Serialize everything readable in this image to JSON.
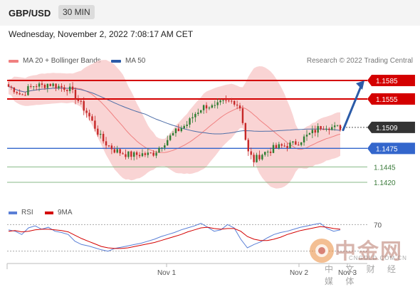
{
  "header": {
    "pair": "GBP/USD",
    "timeframe": "30 MIN"
  },
  "date_line": "Wednesday, November 2, 2022 7:08:17 AM CET",
  "legend": {
    "ma20": "MA 20 + Bollinger Bands",
    "ma50": "MA 50"
  },
  "credit": "Research © 2022 Trading Central",
  "rsi_legend": {
    "rsi": "RSI",
    "ma9": "9MA"
  },
  "watermark": {
    "cn": "中金网",
    "en": "CNGOLD.COM.CN",
    "sub": "中 文 财 经 媒 体"
  },
  "colors": {
    "resistance": "#d40000",
    "support": "#3366cc",
    "target": "#6aa86a",
    "current": "#333333",
    "arrow": "#2b5ba8",
    "ma20": "#f08080",
    "ma50": "#4f6fa8",
    "bollinger": "#f7c6c6",
    "up": "#2e7d32",
    "down": "#c62828"
  },
  "chart_data": {
    "type": "candlestick",
    "yrange": [
      1.139,
      1.16
    ],
    "x_ticks": [
      "Nov 1",
      "Nov 2",
      "Nov 3"
    ],
    "levels": [
      {
        "value": 1.1585,
        "label": "1.1585",
        "kind": "resistance"
      },
      {
        "value": 1.1555,
        "label": "1.1555",
        "kind": "resistance"
      },
      {
        "value": 1.1509,
        "label": "1.1509",
        "kind": "current"
      },
      {
        "value": 1.1475,
        "label": "1.1475",
        "kind": "support"
      },
      {
        "value": 1.1445,
        "label": "1.1445",
        "kind": "target"
      },
      {
        "value": 1.142,
        "label": "1.1420",
        "kind": "target"
      }
    ],
    "path_points": [
      1.1575,
      1.157,
      1.156,
      1.1572,
      1.1578,
      1.1576,
      1.158,
      1.1577,
      1.1574,
      1.1573,
      1.156,
      1.1545,
      1.153,
      1.151,
      1.149,
      1.148,
      1.1472,
      1.1468,
      1.1465,
      1.1464,
      1.1466,
      1.1465,
      1.1468,
      1.148,
      1.149,
      1.15,
      1.1508,
      1.1515,
      1.153,
      1.154,
      1.1545,
      1.154,
      1.1548,
      1.155,
      1.1552,
      1.154,
      1.147,
      1.1455,
      1.1465,
      1.147,
      1.1475,
      1.1478,
      1.148,
      1.1482,
      1.1488,
      1.1495,
      1.1502,
      1.151,
      1.1512,
      1.1508,
      1.1509
    ],
    "forecast_target": 1.1585,
    "rsi": {
      "level_label": "70",
      "range": [
        20,
        80
      ],
      "values": [
        62,
        60,
        55,
        65,
        68,
        63,
        66,
        60,
        58,
        55,
        45,
        40,
        38,
        35,
        32,
        30,
        34,
        36,
        38,
        40,
        42,
        45,
        48,
        52,
        55,
        58,
        62,
        65,
        68,
        72,
        66,
        60,
        62,
        70,
        65,
        48,
        35,
        40,
        44,
        50,
        55,
        58,
        60,
        63,
        66,
        68,
        70,
        72,
        64,
        60,
        62
      ],
      "ma9": [
        60,
        61,
        59,
        60,
        62,
        63,
        63,
        62,
        61,
        59,
        54,
        49,
        45,
        41,
        37,
        35,
        34,
        34,
        35,
        37,
        39,
        41,
        43,
        46,
        49,
        52,
        55,
        59,
        62,
        65,
        66,
        64,
        63,
        64,
        64,
        60,
        52,
        48,
        46,
        46,
        48,
        51,
        55,
        58,
        61,
        63,
        65,
        67,
        66,
        64,
        63
      ]
    }
  }
}
